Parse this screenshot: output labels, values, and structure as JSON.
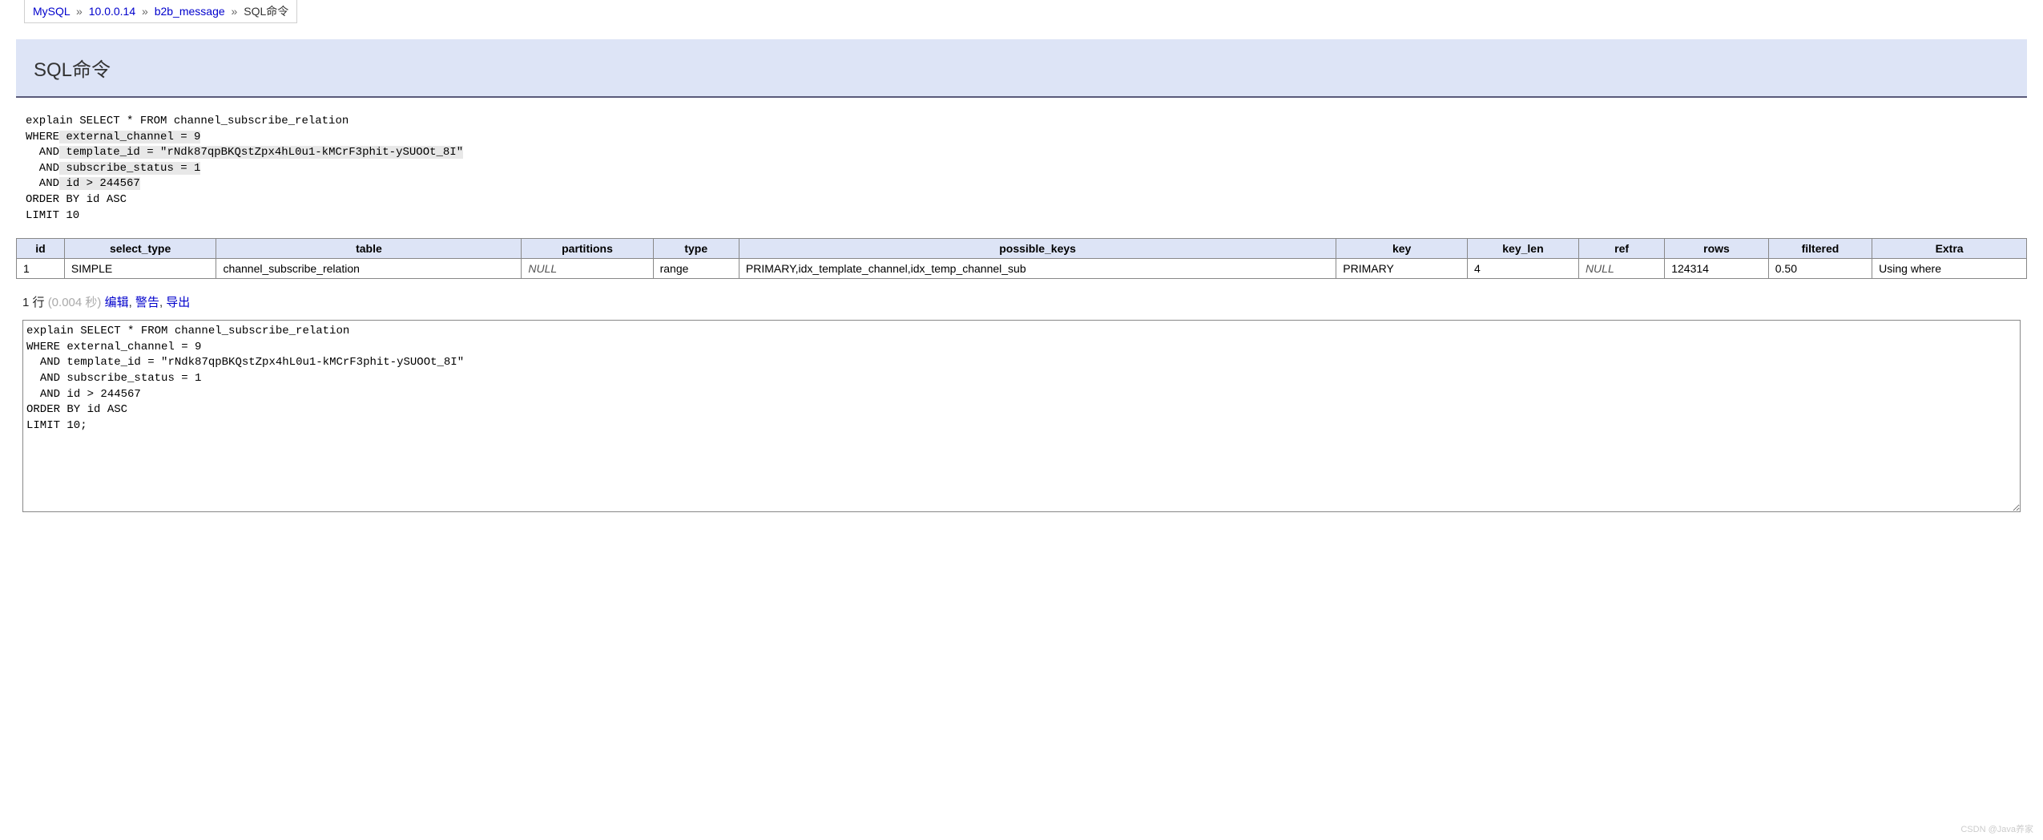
{
  "breadcrumb": {
    "items": [
      "MySQL",
      "10.0.0.14",
      "b2b_message",
      "SQL命令"
    ],
    "separator": "»"
  },
  "title": "SQL命令",
  "sql_display": {
    "line1": "explain SELECT * FROM channel_subscribe_relation",
    "line2a": "WHERE",
    "line2b": " external_channel = 9",
    "line3a": "  AND",
    "line3b": " template_id = \"rNdk87qpBKQstZpx4hL0u1-kMCrF3phit-ySUOOt_8I\"",
    "line4a": "  AND",
    "line4b": " subscribe_status = 1",
    "line5a": "  AND",
    "line5b": " id > 244567",
    "line6": "ORDER BY id ASC",
    "line7": "LIMIT 10"
  },
  "result_table": {
    "columns": [
      "id",
      "select_type",
      "table",
      "partitions",
      "type",
      "possible_keys",
      "key",
      "key_len",
      "ref",
      "rows",
      "filtered",
      "Extra"
    ],
    "rows": [
      {
        "id": "1",
        "select_type": "SIMPLE",
        "table": "channel_subscribe_relation",
        "partitions": "NULL",
        "type": "range",
        "possible_keys": "PRIMARY,idx_template_channel,idx_temp_channel_sub",
        "key": "PRIMARY",
        "key_len": "4",
        "ref": "NULL",
        "rows": "124314",
        "filtered": "0.50",
        "Extra": "Using where"
      }
    ]
  },
  "status": {
    "rows_text": "1 行",
    "time_text": "(0.004 秒)",
    "edit": "编辑",
    "warn": "警告",
    "export": "导出"
  },
  "editor_value": "explain SELECT * FROM channel_subscribe_relation\nWHERE external_channel = 9\n  AND template_id = \"rNdk87qpBKQstZpx4hL0u1-kMCrF3phit-ySUOOt_8I\"\n  AND subscribe_status = 1\n  AND id > 244567\nORDER BY id ASC\nLIMIT 10;",
  "watermark": "CSDN @Java养家"
}
